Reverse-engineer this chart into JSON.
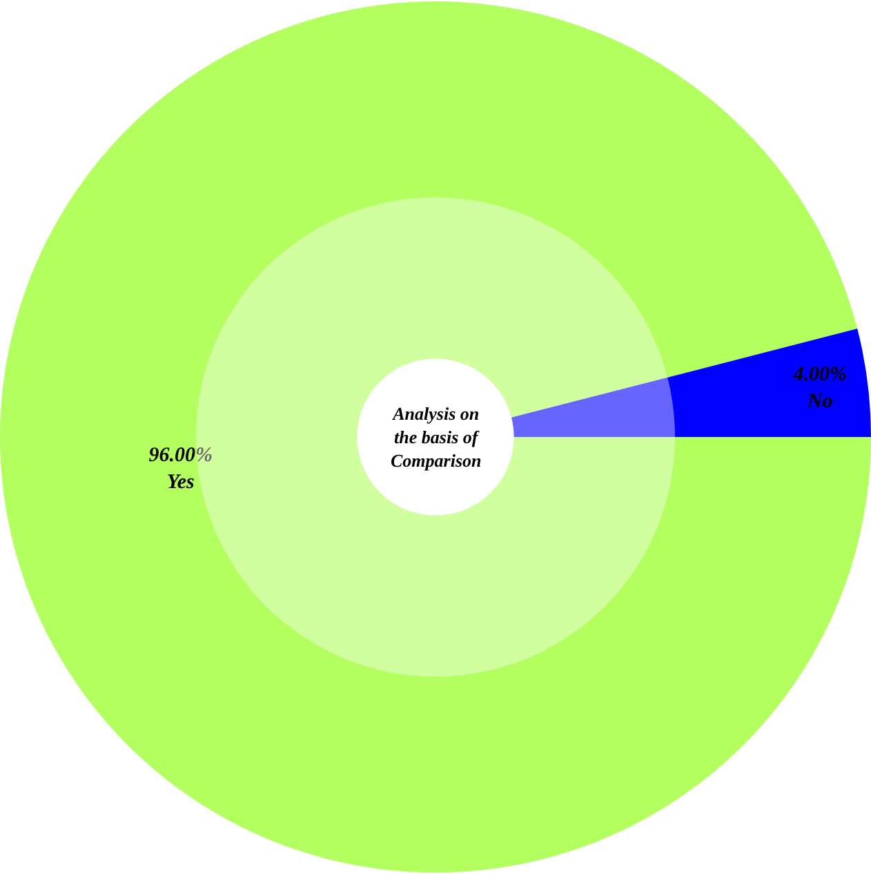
{
  "chart_data": {
    "type": "donut",
    "title": "Analysis on the basis of Comparison",
    "categories": [
      "Yes",
      "No"
    ],
    "values": [
      96,
      4
    ],
    "colors": [
      "#b3ff5f",
      "#0000ff"
    ],
    "value_labels": [
      "96.00%",
      "4.00%"
    ],
    "legend": false
  }
}
